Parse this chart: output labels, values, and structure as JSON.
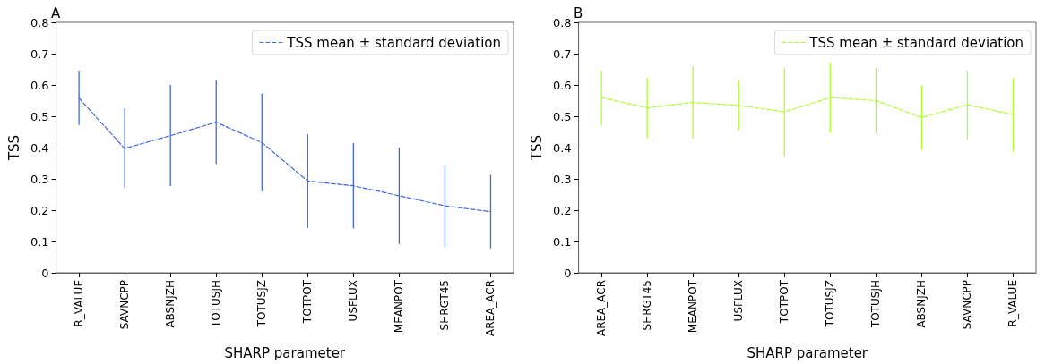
{
  "chart_data": [
    {
      "type": "line",
      "title": "A",
      "xlabel": "SHARP parameter",
      "ylabel": "TSS",
      "categories": [
        "R_VALUE",
        "SAVNCPP",
        "ABSNJZH",
        "TOTUSJH",
        "TOTUSJZ",
        "TOTPOT",
        "USFLUX",
        "MEANPOT",
        "SHRGT45",
        "AREA_ACR"
      ],
      "series": [
        {
          "name": "TSS mean ± standard deviation",
          "color": "#4169e1",
          "values": [
            0.558,
            0.397,
            0.438,
            0.481,
            0.416,
            0.293,
            0.278,
            0.246,
            0.214,
            0.195
          ],
          "errors": [
            [
              0.472,
              0.646
            ],
            [
              0.27,
              0.525
            ],
            [
              0.277,
              0.6
            ],
            [
              0.348,
              0.615
            ],
            [
              0.26,
              0.572
            ],
            [
              0.143,
              0.443
            ],
            [
              0.142,
              0.414
            ],
            [
              0.092,
              0.4
            ],
            [
              0.083,
              0.346
            ],
            [
              0.078,
              0.313
            ]
          ]
        }
      ],
      "ylim": [
        0,
        0.8
      ],
      "yticks": [
        0,
        0.1,
        0.2,
        0.3,
        0.4,
        0.5,
        0.6,
        0.7,
        0.8
      ],
      "grid": false,
      "legend": "top right",
      "marker": "none",
      "line_style": "dashed"
    },
    {
      "type": "line",
      "title": "B",
      "xlabel": "SHARP parameter",
      "ylabel": "TSS",
      "categories": [
        "AREA_ACR",
        "SHRGT45",
        "MEANPOT",
        "USFLUX",
        "TOTPOT",
        "TOTUSJZ",
        "TOTUSJH",
        "ABSNJZH",
        "SAVNCPP",
        "R_VALUE"
      ],
      "series": [
        {
          "name": "TSS mean ± standard deviation",
          "color": "#adff2f",
          "values": [
            0.56,
            0.527,
            0.544,
            0.535,
            0.514,
            0.56,
            0.55,
            0.496,
            0.537,
            0.505
          ],
          "errors": [
            [
              0.472,
              0.646
            ],
            [
              0.43,
              0.623
            ],
            [
              0.428,
              0.66
            ],
            [
              0.455,
              0.614
            ],
            [
              0.372,
              0.655
            ],
            [
              0.447,
              0.671
            ],
            [
              0.445,
              0.655
            ],
            [
              0.393,
              0.599
            ],
            [
              0.426,
              0.646
            ],
            [
              0.386,
              0.622
            ]
          ]
        }
      ],
      "ylim": [
        0,
        0.8
      ],
      "yticks": [
        0,
        0.1,
        0.2,
        0.3,
        0.4,
        0.5,
        0.6,
        0.7,
        0.8
      ],
      "grid": false,
      "legend": "top right",
      "marker": "none",
      "line_style": "dashed"
    }
  ]
}
